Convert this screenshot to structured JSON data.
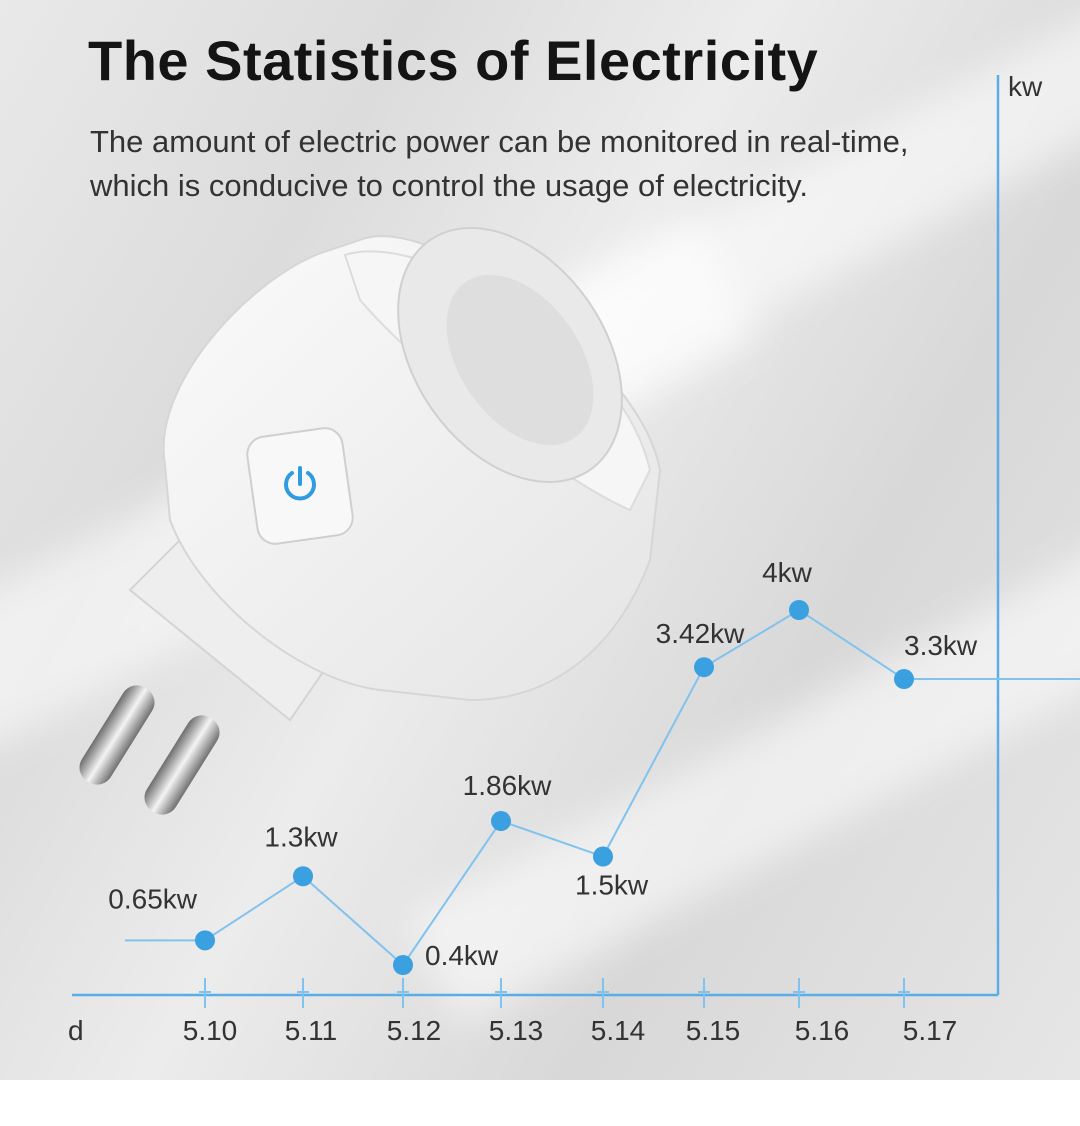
{
  "title": "The Statistics of Electricity",
  "subtitle": "The amount of electric power can be monitored in real-time, which is conducive to control the usage of electricity.",
  "colors": {
    "accent": "#3aa0e0",
    "line": "#7fc3ee"
  },
  "chart_data": {
    "type": "line",
    "xlabel": "d",
    "ylabel": "kw",
    "categories": [
      "5.10",
      "5.11",
      "5.12",
      "5.13",
      "5.14",
      "5.15",
      "5.16",
      "5.17"
    ],
    "series": [
      {
        "values": [
          0.65,
          1.3,
          0.4,
          1.86,
          1.5,
          3.42,
          4,
          3.3
        ],
        "labels": [
          "0.65kw",
          "1.3kw",
          "0.4kw",
          "1.86kw",
          "1.5kw",
          "3.42kw",
          "4kw",
          "3.3kw"
        ]
      }
    ]
  }
}
